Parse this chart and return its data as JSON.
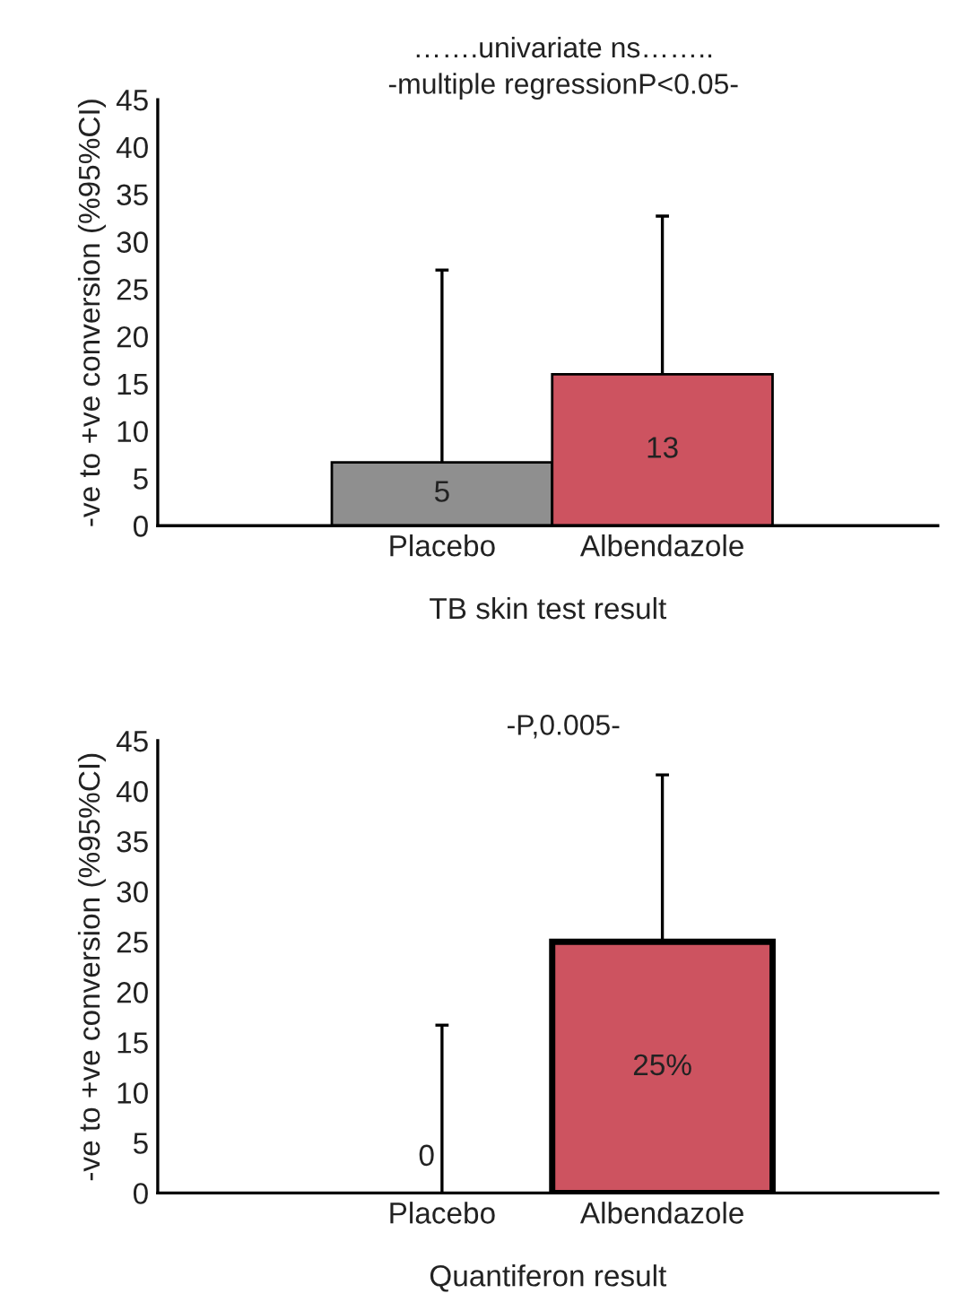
{
  "chart_data": [
    {
      "type": "bar",
      "categories": [
        "Placebo",
        "Albendazole"
      ],
      "xlabel": "TB skin test result",
      "ylabel": "-ve to +ve conversion (%95%CI)",
      "values": [
        6.7,
        16
      ],
      "colors": [
        "#8f8f8f",
        "#cd5360"
      ],
      "errors": [
        [
          6.7,
          27
        ],
        [
          16,
          32.7
        ]
      ],
      "ylim": [
        0,
        45
      ],
      "yticks": [
        0,
        5,
        10,
        15,
        20,
        25,
        30,
        35,
        40,
        45
      ],
      "grid": false,
      "title": "…….univariate ns……..",
      "subtitle": "-multiple regressionP<0.05-",
      "annotations": [
        "5",
        "13"
      ]
    },
    {
      "type": "bar",
      "categories": [
        "Placebo",
        "Albendazole"
      ],
      "xlabel": "Quantiferon result",
      "ylabel": "-ve to +ve conversion (%95%CI)",
      "values": [
        0,
        25
      ],
      "colors": [
        "#8f8f8f",
        "#cd5360"
      ],
      "value_labels": [
        "0",
        "25%"
      ],
      "errors": [
        [
          0,
          16.7
        ],
        [
          25,
          41.6
        ]
      ],
      "ylim": [
        0,
        45
      ],
      "yticks": [
        0,
        5,
        10,
        15,
        20,
        25,
        30,
        35,
        40,
        45
      ],
      "grid": false,
      "title": "-P,0.005-"
    }
  ]
}
